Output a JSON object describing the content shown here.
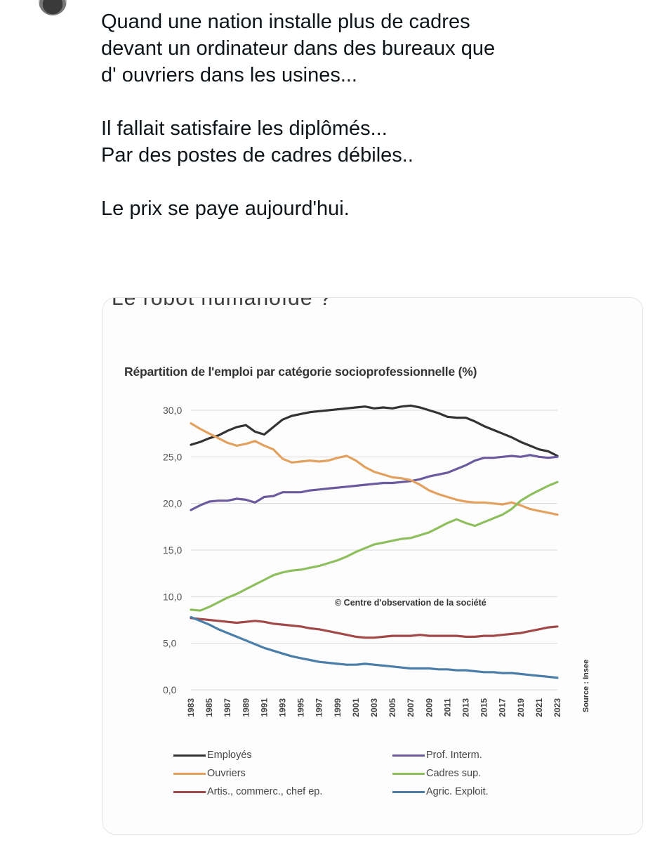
{
  "post": {
    "lines": [
      "Quand une nation installe plus de cadres",
      "devant un ordinateur dans des bureaux que",
      "d' ouvriers dans les usines...",
      "",
      "Il fallait satisfaire les diplômés...",
      "Par des postes de cadres débiles..",
      "",
      "Le prix se paye aujourd'hui."
    ]
  },
  "image": {
    "cut_heading": "Le robot humanoïde ?",
    "watermark": "© Centre d'observation de la société",
    "source": "Source : Insee"
  },
  "chart_data": {
    "type": "line",
    "title": "Répartition de l'emploi par catégorie socioprofessionnelle (%)",
    "ylim": [
      0,
      30
    ],
    "yticks": [
      "0,0",
      "5,0",
      "10,0",
      "15,0",
      "20,0",
      "25,0",
      "30,0"
    ],
    "x": [
      1983,
      1984,
      1985,
      1986,
      1987,
      1988,
      1989,
      1990,
      1991,
      1992,
      1993,
      1994,
      1995,
      1996,
      1997,
      1998,
      1999,
      2000,
      2001,
      2002,
      2003,
      2004,
      2005,
      2006,
      2007,
      2008,
      2009,
      2010,
      2011,
      2012,
      2013,
      2014,
      2015,
      2016,
      2017,
      2018,
      2019,
      2020,
      2021,
      2022,
      2023
    ],
    "xtick_labels": [
      "1983",
      "1985",
      "1987",
      "1989",
      "1991",
      "1993",
      "1995",
      "1997",
      "1999",
      "2001",
      "2003",
      "2005",
      "2007",
      "2009",
      "2011",
      "2013",
      "2015",
      "2017",
      "2019",
      "2021",
      "2023"
    ],
    "grid": true,
    "legend_position": "bottom",
    "series": [
      {
        "name": "Employés",
        "color": "#333333",
        "values": [
          26.3,
          26.6,
          27.0,
          27.3,
          27.8,
          28.2,
          28.4,
          27.7,
          27.4,
          28.2,
          29.0,
          29.4,
          29.6,
          29.8,
          29.9,
          30.0,
          30.1,
          30.2,
          30.3,
          30.4,
          30.2,
          30.3,
          30.2,
          30.4,
          30.5,
          30.3,
          30.0,
          29.7,
          29.3,
          29.2,
          29.2,
          28.8,
          28.3,
          27.9,
          27.5,
          27.1,
          26.6,
          26.2,
          25.8,
          25.6,
          25.1
        ]
      },
      {
        "name": "Prof. Interm.",
        "color": "#6b5b9e",
        "values": [
          19.3,
          19.8,
          20.2,
          20.3,
          20.3,
          20.5,
          20.4,
          20.1,
          20.7,
          20.8,
          21.2,
          21.2,
          21.2,
          21.4,
          21.5,
          21.6,
          21.7,
          21.8,
          21.9,
          22.0,
          22.1,
          22.2,
          22.2,
          22.3,
          22.4,
          22.6,
          22.9,
          23.1,
          23.3,
          23.7,
          24.1,
          24.6,
          24.9,
          24.9,
          25.0,
          25.1,
          25.0,
          25.2,
          25.0,
          24.9,
          25.0
        ]
      },
      {
        "name": "Ouvriers",
        "color": "#e3a160",
        "values": [
          28.6,
          28.0,
          27.5,
          27.0,
          26.5,
          26.2,
          26.4,
          26.7,
          26.2,
          25.8,
          24.8,
          24.4,
          24.5,
          24.6,
          24.5,
          24.6,
          24.9,
          25.1,
          24.6,
          23.9,
          23.4,
          23.1,
          22.8,
          22.7,
          22.5,
          22.0,
          21.4,
          21.0,
          20.7,
          20.4,
          20.2,
          20.1,
          20.1,
          20.0,
          19.9,
          20.1,
          19.8,
          19.4,
          19.2,
          19.0,
          18.8
        ]
      },
      {
        "name": "Cadres sup.",
        "color": "#8ebf5e",
        "values": [
          8.6,
          8.5,
          8.9,
          9.4,
          9.9,
          10.3,
          10.8,
          11.3,
          11.8,
          12.3,
          12.6,
          12.8,
          12.9,
          13.1,
          13.3,
          13.6,
          13.9,
          14.3,
          14.8,
          15.2,
          15.6,
          15.8,
          16.0,
          16.2,
          16.3,
          16.6,
          16.9,
          17.4,
          17.9,
          18.3,
          17.9,
          17.6,
          18.0,
          18.4,
          18.8,
          19.4,
          20.3,
          20.9,
          21.4,
          21.9,
          22.3
        ]
      },
      {
        "name": "Artis., commerc., chef ep.",
        "color": "#a34848",
        "values": [
          7.7,
          7.6,
          7.5,
          7.4,
          7.3,
          7.2,
          7.3,
          7.4,
          7.3,
          7.1,
          7.0,
          6.9,
          6.8,
          6.6,
          6.5,
          6.3,
          6.1,
          5.9,
          5.7,
          5.6,
          5.6,
          5.7,
          5.8,
          5.8,
          5.8,
          5.9,
          5.8,
          5.8,
          5.8,
          5.8,
          5.7,
          5.7,
          5.8,
          5.8,
          5.9,
          6.0,
          6.1,
          6.3,
          6.5,
          6.7,
          6.8
        ]
      },
      {
        "name": "Agric. Exploit.",
        "color": "#4a7ea8",
        "values": [
          7.8,
          7.4,
          7.0,
          6.5,
          6.1,
          5.7,
          5.3,
          4.9,
          4.5,
          4.2,
          3.9,
          3.6,
          3.4,
          3.2,
          3.0,
          2.9,
          2.8,
          2.7,
          2.7,
          2.8,
          2.7,
          2.6,
          2.5,
          2.4,
          2.3,
          2.3,
          2.3,
          2.2,
          2.2,
          2.1,
          2.1,
          2.0,
          1.9,
          1.9,
          1.8,
          1.8,
          1.7,
          1.6,
          1.5,
          1.4,
          1.3
        ]
      }
    ],
    "legend": [
      {
        "name": "Employés",
        "color": "#333333"
      },
      {
        "name": "Prof. Interm.",
        "color": "#6b5b9e"
      },
      {
        "name": "Ouvriers",
        "color": "#e3a160"
      },
      {
        "name": "Cadres sup.",
        "color": "#8ebf5e"
      },
      {
        "name": "Artis., commerc., chef ep.",
        "color": "#a34848"
      },
      {
        "name": "Agric. Exploit.",
        "color": "#4a7ea8"
      }
    ]
  }
}
